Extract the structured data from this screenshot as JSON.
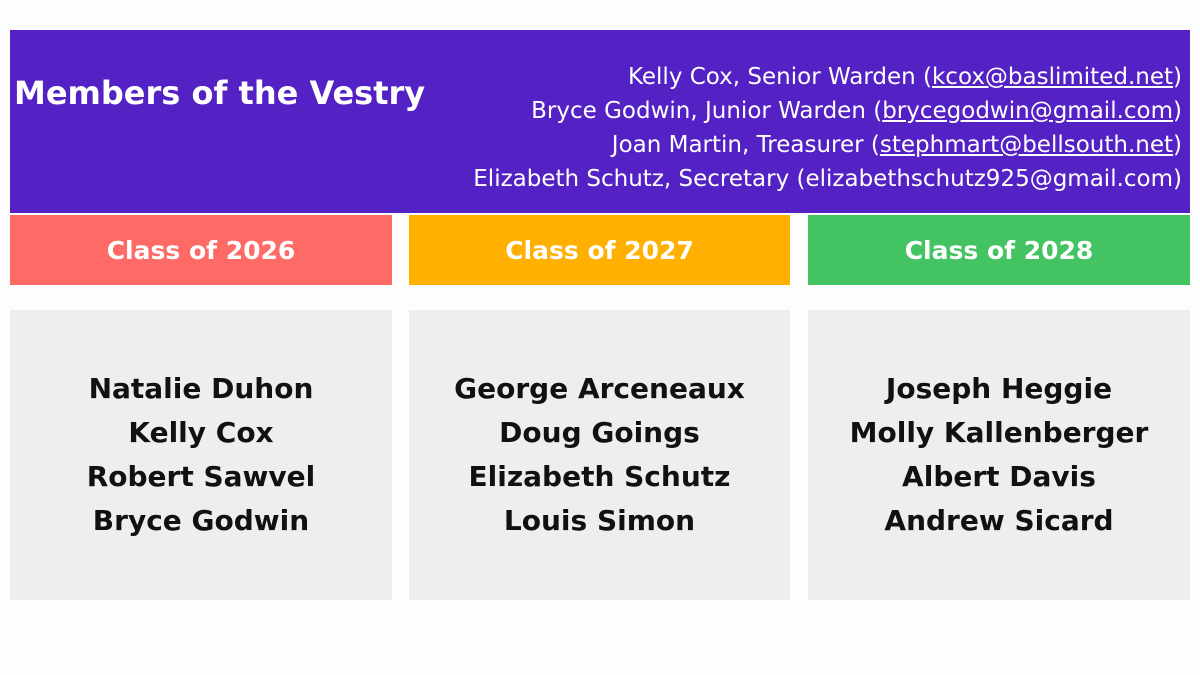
{
  "header": {
    "title": "Members of the Vestry",
    "officers": [
      {
        "prefix": "Kelly Cox, Senior Warden (",
        "email": "kcox@baslimited.net",
        "suffix": ")",
        "underlined": true
      },
      {
        "prefix": "Bryce Godwin, Junior Warden (",
        "email": "brycegodwin@gmail.com",
        "suffix": ")",
        "underlined": true
      },
      {
        "prefix": "Joan Martin, Treasurer (",
        "email": "stephmart@bellsouth.net",
        "suffix": ")",
        "underlined": true
      },
      {
        "prefix": "Elizabeth Schutz, Secretary (",
        "email": "elizabethschutz925@gmail.com",
        "suffix": ")",
        "underlined": false
      }
    ]
  },
  "classes": [
    {
      "title": "Class of 2026",
      "color": "#fe6b67",
      "members": [
        "Natalie Duhon",
        "Kelly Cox",
        "Robert Sawvel",
        "Bryce Godwin"
      ]
    },
    {
      "title": "Class of 2027",
      "color": "#ffb000",
      "members": [
        "George Arceneaux",
        "Doug Goings",
        "Elizabeth Schutz",
        "Louis Simon"
      ]
    },
    {
      "title": "Class of 2028",
      "color": "#44c362",
      "members": [
        "Joseph Heggie",
        "Molly Kallenberger",
        "Albert Davis",
        "Andrew Sicard"
      ]
    }
  ]
}
